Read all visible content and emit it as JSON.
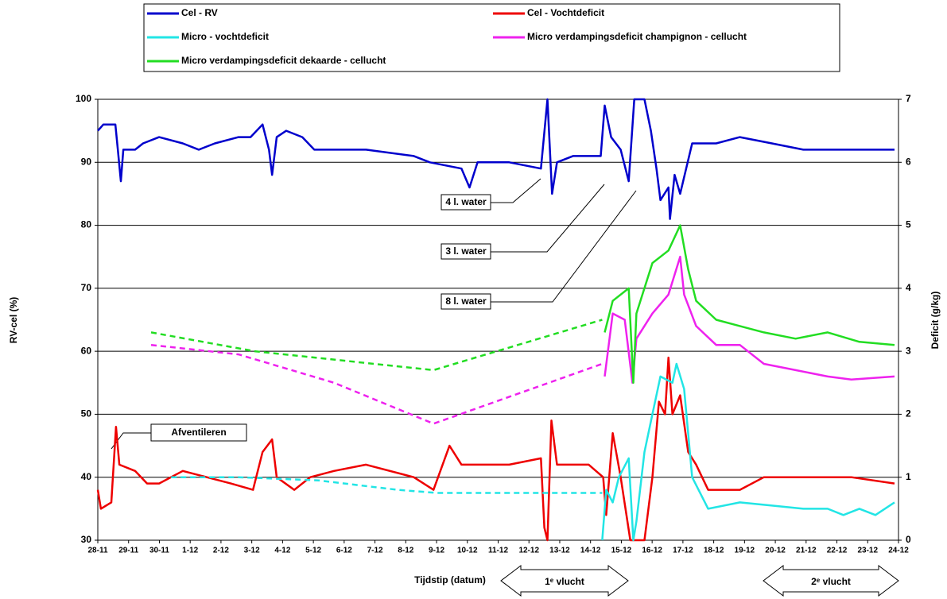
{
  "chart_data": {
    "type": "line",
    "xlabel": "Tijdstip (datum)",
    "ylabel": "RV-cel (%)",
    "y2label": "Deficit (g/kg)",
    "xlim": [
      0,
      26
    ],
    "ylim": [
      30,
      100
    ],
    "y2lim": [
      0,
      7
    ],
    "yticks": [
      30,
      40,
      50,
      60,
      70,
      80,
      90,
      100
    ],
    "y2ticks": [
      0,
      1,
      2,
      3,
      4,
      5,
      6,
      7
    ],
    "xticks": [
      {
        "value": 0,
        "label": "28-11"
      },
      {
        "value": 1,
        "label": "29-11"
      },
      {
        "value": 2,
        "label": "30-11"
      },
      {
        "value": 3,
        "label": "1-12"
      },
      {
        "value": 4,
        "label": "2-12"
      },
      {
        "value": 5,
        "label": "3-12"
      },
      {
        "value": 6,
        "label": "4-12"
      },
      {
        "value": 7,
        "label": "5-12"
      },
      {
        "value": 8,
        "label": "6-12"
      },
      {
        "value": 9,
        "label": "7-12"
      },
      {
        "value": 10,
        "label": "8-12"
      },
      {
        "value": 11,
        "label": "9-12"
      },
      {
        "value": 12,
        "label": "10-12"
      },
      {
        "value": 13,
        "label": "11-12"
      },
      {
        "value": 14,
        "label": "12-12"
      },
      {
        "value": 15,
        "label": "13-12"
      },
      {
        "value": 16,
        "label": "14-12"
      },
      {
        "value": 17,
        "label": "15-12"
      },
      {
        "value": 18,
        "label": "16-12"
      },
      {
        "value": 19,
        "label": "17-12"
      },
      {
        "value": 20,
        "label": "18-12"
      },
      {
        "value": 21,
        "label": "19-12"
      },
      {
        "value": 22,
        "label": "20-12"
      },
      {
        "value": 23,
        "label": "21-12"
      },
      {
        "value": 24,
        "label": "22-12"
      },
      {
        "value": 25,
        "label": "23-12"
      },
      {
        "value": 26,
        "label": "24-12"
      }
    ],
    "grid": true,
    "series": [
      {
        "name": "Cel - RV",
        "color": "#0000cc",
        "axis": "y",
        "x": [
          0,
          0.18,
          0.57,
          0.65,
          0.75,
          0.83,
          1.21,
          1.47,
          1.99,
          2.76,
          3.28,
          3.8,
          4.57,
          4.96,
          5.35,
          5.56,
          5.66,
          5.81,
          6.12,
          6.64,
          7.03,
          7.67,
          8.71,
          10.26,
          10.78,
          11.81,
          12.07,
          12.33,
          13.36,
          14.39,
          14.6,
          14.75,
          14.91,
          15.43,
          16.33,
          16.46,
          16.67,
          16.98,
          17.24,
          17.42,
          17.75,
          17.96,
          18.14,
          18.27,
          18.53,
          18.58,
          18.73,
          18.91,
          19.3,
          20.08,
          20.85,
          21.89,
          22.91,
          24.47,
          25.87
        ],
        "values": [
          95,
          96,
          96,
          92,
          87,
          92,
          92,
          93,
          94,
          93,
          92,
          93,
          94,
          94,
          96,
          92,
          88,
          94,
          95,
          94,
          92,
          92,
          92,
          91,
          90,
          89,
          86,
          90,
          90,
          89,
          100,
          85,
          90,
          91,
          91,
          99,
          94,
          92,
          87,
          100,
          100,
          95,
          89,
          84,
          86,
          81,
          88,
          85,
          93,
          93,
          94,
          93,
          92,
          92,
          92
        ]
      },
      {
        "name": "Cel - Vochtdeficit",
        "color": "#ee0000",
        "axis": "y2",
        "x": [
          0,
          0.1,
          0.44,
          0.59,
          0.7,
          1.21,
          1.6,
          1.99,
          2.76,
          3.54,
          4.32,
          5.04,
          5.35,
          5.66,
          5.81,
          6.38,
          6.9,
          7.67,
          8.71,
          10.26,
          10.9,
          11.42,
          11.81,
          12.33,
          13.36,
          14.39,
          14.5,
          14.6,
          14.73,
          14.91,
          15.94,
          16.41,
          16.51,
          16.72,
          16.98,
          17.29,
          17.75,
          18.01,
          18.22,
          18.42,
          18.53,
          18.66,
          18.91,
          19.17,
          19.43,
          19.82,
          20.85,
          21.63,
          22.91,
          24.47,
          25.87
        ],
        "values": [
          0.8,
          0.5,
          0.6,
          1.8,
          1.2,
          1.1,
          0.9,
          0.9,
          1.1,
          1.0,
          0.9,
          0.8,
          1.4,
          1.6,
          1.0,
          0.8,
          1.0,
          1.1,
          1.2,
          1.0,
          0.8,
          1.5,
          1.2,
          1.2,
          1.2,
          1.3,
          0.2,
          0,
          1.9,
          1.2,
          1.2,
          1.0,
          0.4,
          1.7,
          1.0,
          0,
          0,
          1.0,
          2.2,
          2.0,
          2.9,
          2.0,
          2.3,
          1.4,
          1.2,
          0.8,
          0.8,
          1.0,
          1.0,
          1.0,
          0.9
        ]
      },
      {
        "name": "Micro - vochtdeficit",
        "color": "#22e5e5",
        "axis": "y2",
        "x": [
          16.38,
          16.51,
          16.72,
          16.92,
          17.24,
          17.39,
          17.49,
          17.75,
          18.01,
          18.27,
          18.66,
          18.79,
          19.04,
          19.3,
          19.82,
          20.85,
          21.89,
          22.91,
          23.7,
          24.21,
          24.73,
          25.25,
          25.87
        ],
        "values": [
          0,
          0.8,
          0.6,
          1.0,
          1.3,
          0,
          0.3,
          1.4,
          2.0,
          2.6,
          2.5,
          2.8,
          2.4,
          1.0,
          0.5,
          0.6,
          0.55,
          0.5,
          0.5,
          0.4,
          0.5,
          0.4,
          0.6
        ],
        "dashed_x": [
          2.38,
          4.57,
          7.16,
          9.74,
          11.03,
          16.38
        ],
        "dashed_values": [
          1.0,
          1.0,
          0.95,
          0.8,
          0.75,
          0.75
        ]
      },
      {
        "name": "Micro verdampingsdeficit champignon - cellucht",
        "color": "#ee22ee",
        "axis": "y2",
        "x": [
          16.46,
          16.72,
          17.11,
          17.36,
          17.49,
          18.01,
          18.53,
          18.91,
          19.04,
          19.43,
          20.08,
          20.85,
          21.63,
          22.66,
          23.7,
          24.47,
          25.87
        ],
        "values": [
          2.6,
          3.6,
          3.5,
          2.5,
          3.2,
          3.6,
          3.9,
          4.5,
          3.9,
          3.4,
          3.1,
          3.1,
          2.8,
          2.7,
          2.6,
          2.55,
          2.6
        ],
        "dashed_x": [
          1.73,
          4.57,
          7.67,
          10.9,
          16.38
        ],
        "dashed_values": [
          3.1,
          2.95,
          2.5,
          1.85,
          2.8
        ]
      },
      {
        "name": "Micro verdampingsdeficit dekaarde - cellucht",
        "color": "#22dd22",
        "axis": "y2",
        "x": [
          16.46,
          16.72,
          17.24,
          17.39,
          17.49,
          18.01,
          18.53,
          18.91,
          19.17,
          19.43,
          20.08,
          20.85,
          21.63,
          22.66,
          23.7,
          24.73,
          25.87
        ],
        "values": [
          3.3,
          3.8,
          4.0,
          2.5,
          3.6,
          4.4,
          4.6,
          5.0,
          4.3,
          3.8,
          3.5,
          3.4,
          3.3,
          3.2,
          3.3,
          3.15,
          3.1
        ],
        "dashed_x": [
          1.73,
          5.09,
          10.9,
          16.38
        ],
        "dashed_values": [
          3.3,
          3.0,
          2.7,
          3.5
        ]
      }
    ],
    "annotations": [
      "4 l. water",
      "3 l. water",
      "8 l. water",
      "Afventileren",
      "1ᵉ vlucht",
      "2ᵉ vlucht"
    ]
  }
}
